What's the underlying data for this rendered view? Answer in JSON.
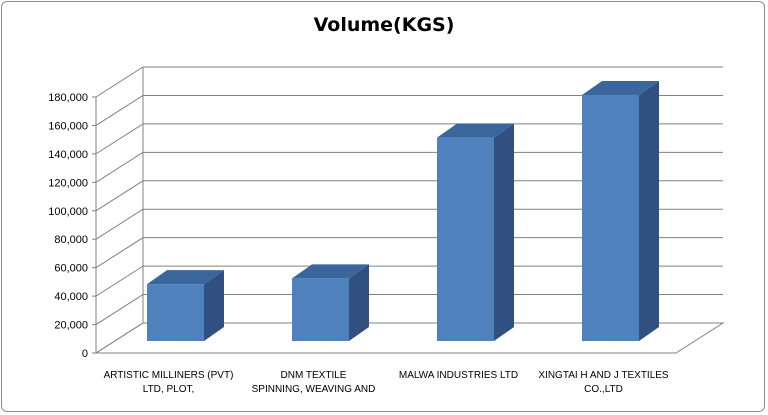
{
  "chart_data": {
    "type": "bar",
    "title": "Volume(KGS)",
    "categories": [
      [
        "ARTISTIC MILLINERS (PVT)",
        "LTD, PLOT,"
      ],
      [
        "DNM TEXTILE",
        "SPINNING, WEAVING AND"
      ],
      [
        "MALWA INDUSTRIES LTD"
      ],
      [
        "XINGTAI H AND J TEXTILES",
        "CO.,LTD"
      ]
    ],
    "values": [
      40000,
      44000,
      143000,
      173000
    ],
    "ylim": [
      0,
      180000
    ],
    "yticks": [
      "0",
      "20,000",
      "40,000",
      "60,000",
      "80,000",
      "100,000",
      "120,000",
      "140,000",
      "160,000",
      "180,000"
    ],
    "grid": true,
    "legend": "none",
    "colors": {
      "front": "#4F81BD",
      "top": "#3B669B",
      "side": "#2F5080",
      "grid": "#808080"
    }
  }
}
